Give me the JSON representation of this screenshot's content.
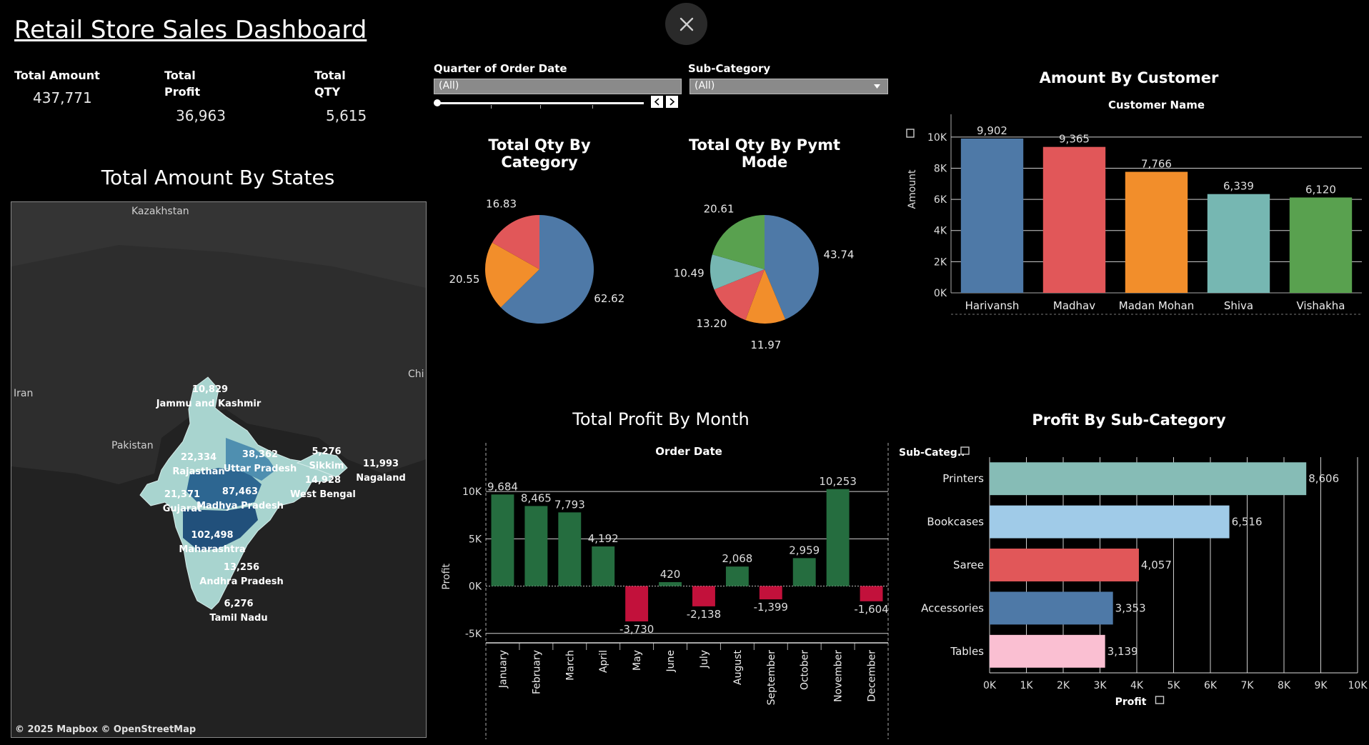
{
  "dashboard": {
    "title": "Retail Store Sales Dashboard"
  },
  "kpis": [
    {
      "label_line1": "Total Amount",
      "label_line2": "",
      "value": "437,771"
    },
    {
      "label_line1": "Total",
      "label_line2": "Profit",
      "value": "36,963"
    },
    {
      "label_line1": "Total",
      "label_line2": "QTY",
      "value": "5,615"
    }
  ],
  "filters": {
    "quarter": {
      "label": "Quarter of Order Date",
      "value": "(All)"
    },
    "subcategory": {
      "label": "Sub-Category",
      "value": "(All)"
    }
  },
  "map": {
    "title": "Total Amount By States",
    "attribution": "© 2025 Mapbox  © OpenStreetMap",
    "country_labels": [
      "Kazakhstan",
      "Iran",
      "Pakistan",
      "Chi"
    ],
    "states": [
      {
        "name": "Jammu and Kashmir",
        "value": "10,829"
      },
      {
        "name": "Rajasthan",
        "value": "22,334"
      },
      {
        "name": "Uttar Pradesh",
        "value": "38,362"
      },
      {
        "name": "Sikkim",
        "value": "5,276"
      },
      {
        "name": "Nagaland",
        "value": "11,993"
      },
      {
        "name": "West Bengal",
        "value": "14,928"
      },
      {
        "name": "Gujarat",
        "value": "21,371"
      },
      {
        "name": "Madhya Pradesh",
        "value": "87,463"
      },
      {
        "name": "Maharashtra",
        "value": "102,498"
      },
      {
        "name": "Andhra Pradesh",
        "value": "13,256"
      },
      {
        "name": "Tamil Nadu",
        "value": "6,276"
      }
    ]
  },
  "chart_data": [
    {
      "id": "qty_by_category",
      "type": "pie",
      "title": "Total Qty By Category",
      "labels": [
        "62.62",
        "20.55",
        "16.83"
      ],
      "values": [
        62.62,
        20.55,
        16.83
      ],
      "colors": [
        "#4e79a7",
        "#f28e2b",
        "#e15759"
      ]
    },
    {
      "id": "qty_by_pymt_mode",
      "type": "pie",
      "title": "Total Qty By Pymt Mode",
      "labels": [
        "43.74",
        "11.97",
        "13.20",
        "10.49",
        "20.61"
      ],
      "values": [
        43.74,
        11.97,
        13.2,
        10.49,
        20.61
      ],
      "colors": [
        "#4e79a7",
        "#f28e2b",
        "#e15759",
        "#76b7b2",
        "#59a14f"
      ]
    },
    {
      "id": "amount_by_customer",
      "type": "bar",
      "title": "Amount By Customer",
      "xlabel": "Customer Name",
      "ylabel": "Amount",
      "categories": [
        "Harivansh",
        "Madhav",
        "Madan Mohan",
        "Shiva",
        "Vishakha"
      ],
      "values": [
        9902,
        9365,
        7766,
        6339,
        6120
      ],
      "value_labels": [
        "9,902",
        "9,365",
        "7,766",
        "6,339",
        "6,120"
      ],
      "colors": [
        "#4e79a7",
        "#e15759",
        "#f28e2b",
        "#76b7b2",
        "#59a14f"
      ],
      "ylim": [
        0,
        11000
      ],
      "yticks": [
        0,
        2000,
        4000,
        6000,
        8000,
        10000
      ],
      "ytick_labels": [
        "0K",
        "2K",
        "4K",
        "6K",
        "8K",
        "10K"
      ]
    },
    {
      "id": "profit_by_month",
      "type": "bar",
      "title": "Total Profit By Month",
      "xlabel": "Order Date",
      "ylabel": "Profit",
      "categories": [
        "January",
        "February",
        "March",
        "April",
        "May",
        "June",
        "July",
        "August",
        "September",
        "October",
        "November",
        "December"
      ],
      "values": [
        9684,
        8465,
        7793,
        4192,
        -3730,
        420,
        -2138,
        2068,
        -1399,
        2959,
        10253,
        -1604
      ],
      "value_labels": [
        "9,684",
        "8,465",
        "7,793",
        "4,192",
        "-3,730",
        "420",
        "-2,138",
        "2,068",
        "-1,399",
        "2,959",
        "10,253",
        "-1,604"
      ],
      "positive_color": "#256d3f",
      "negative_color": "#c2113b",
      "ylim": [
        -6000,
        12500
      ],
      "yticks": [
        -5000,
        0,
        5000,
        10000
      ],
      "ytick_labels": [
        "-5K",
        "0K",
        "5K",
        "10K"
      ]
    },
    {
      "id": "profit_by_subcategory",
      "type": "bar",
      "orientation": "horizontal",
      "title": "Profit By Sub-Category",
      "xlabel": "Profit",
      "ylabel": "Sub-Categ..",
      "categories": [
        "Printers",
        "Bookcases",
        "Saree",
        "Accessories",
        "Tables"
      ],
      "values": [
        8606,
        6516,
        4057,
        3353,
        3139
      ],
      "value_labels": [
        "8,606",
        "6,516",
        "4,057",
        "3,353",
        "3,139"
      ],
      "colors": [
        "#86bcb6",
        "#a0cbe8",
        "#e15759",
        "#4e79a7",
        "#fabfd2"
      ],
      "xlim": [
        0,
        10000
      ],
      "xticks": [
        0,
        1000,
        2000,
        3000,
        4000,
        5000,
        6000,
        7000,
        8000,
        9000,
        10000
      ],
      "xtick_labels": [
        "0K",
        "1K",
        "2K",
        "3K",
        "4K",
        "5K",
        "6K",
        "7K",
        "8K",
        "9K",
        "10K"
      ]
    }
  ]
}
